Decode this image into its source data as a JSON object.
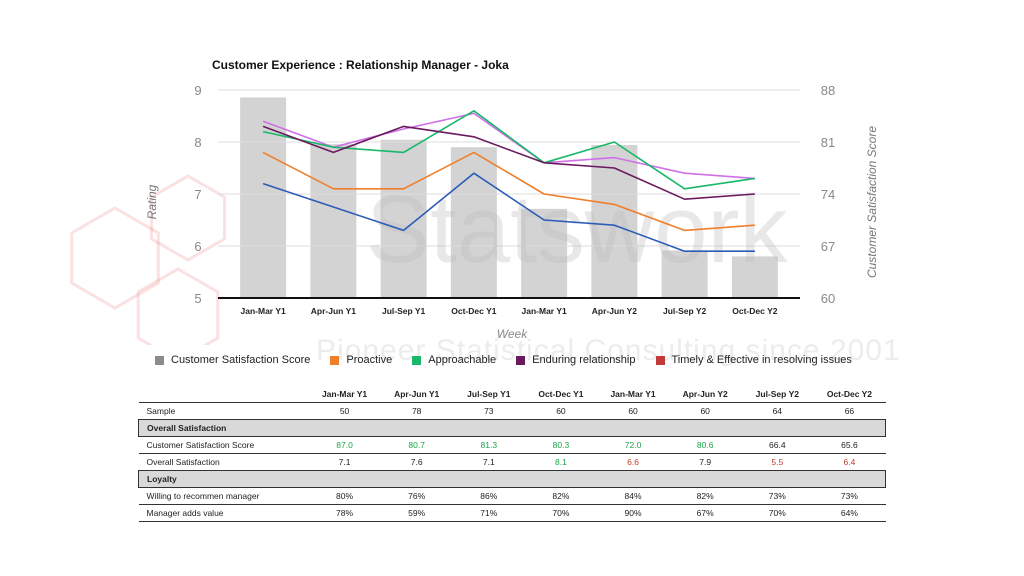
{
  "colors": {
    "bar": "#d3d3d3",
    "legend_css": "#8c8c8c",
    "proactive": "#f07f2a",
    "approachable": "#19b86a",
    "enduring": "#6b1a5f",
    "timely": "#c23a3a",
    "lavender": "#d070e8",
    "blue": "#2b5cb8",
    "green_text": "#1aa64a",
    "red_text": "#c0392b"
  },
  "watermark": {
    "brand": "Statswork",
    "tagline": "Pioneer Statistical Consulting since 2001"
  },
  "chart_data": {
    "type": "bar-line combo",
    "title": "Customer Experience : Relationship Manager - Joka",
    "xlabel": "Week",
    "ylabel_left": "Rating",
    "ylabel_right": "Customer Satisfaction Score",
    "ylim_left": [
      5,
      9
    ],
    "ylim_right": [
      60,
      88
    ],
    "yticks_left": [
      5,
      6,
      7,
      8,
      9
    ],
    "yticks_right": [
      60,
      67,
      74,
      81,
      88
    ],
    "categories": [
      "Jan-Mar Y1",
      "Apr-Jun Y1",
      "Jul-Sep Y1",
      "Oct-Dec Y1",
      "Jan-Mar Y1",
      "Apr-Jun Y2",
      "Jul-Sep Y2",
      "Oct-Dec Y2"
    ],
    "bars": {
      "name": "Customer Satisfaction Score",
      "values": [
        87.0,
        80.7,
        81.3,
        80.3,
        72.0,
        80.6,
        66.4,
        65.6
      ]
    },
    "series": [
      {
        "name": "Enduring relationship",
        "color_key": "lavender",
        "values": [
          8.4,
          7.9,
          8.25,
          8.55,
          7.6,
          7.7,
          7.4,
          7.3
        ]
      },
      {
        "name": "Approachable",
        "color_key": "approachable",
        "values": [
          8.2,
          7.9,
          7.8,
          8.6,
          7.6,
          8.0,
          7.1,
          7.3
        ]
      },
      {
        "name": "Enduring relationship",
        "color_key": "enduring",
        "values": [
          8.3,
          7.8,
          8.3,
          8.1,
          7.6,
          7.5,
          6.9,
          7.0
        ]
      },
      {
        "name": "Proactive",
        "color_key": "proactive",
        "values": [
          7.8,
          7.1,
          7.1,
          7.8,
          7.0,
          6.8,
          6.3,
          6.4
        ]
      },
      {
        "name": "Timely & Effective in resolving issues",
        "color_key": "blue",
        "values": [
          7.2,
          6.75,
          6.3,
          7.4,
          6.5,
          6.4,
          5.9,
          5.9
        ]
      }
    ]
  },
  "legend": [
    {
      "label": "Customer Satisfaction Score",
      "color_key": "legend_css"
    },
    {
      "label": "Proactive",
      "color_key": "proactive"
    },
    {
      "label": "Approachable",
      "color_key": "approachable"
    },
    {
      "label": "Enduring relationship",
      "color_key": "enduring"
    },
    {
      "label": "Timely & Effective in resolving issues",
      "color_key": "timely"
    }
  ],
  "table": {
    "headers": [
      "Jan-Mar Y1",
      "Apr-Jun Y1",
      "Jul-Sep Y1",
      "Oct-Dec Y1",
      "Jan-Mar Y1",
      "Apr-Jun Y2",
      "Jul-Sep Y2",
      "Oct-Dec Y2"
    ],
    "rows": [
      {
        "type": "data",
        "label": "Sample",
        "values": [
          "50",
          "78",
          "73",
          "60",
          "60",
          "60",
          "64",
          "66"
        ],
        "styles": [
          "",
          "",
          "",
          "",
          "",
          "",
          "",
          ""
        ]
      },
      {
        "type": "section",
        "label": "Overall Satisfaction"
      },
      {
        "type": "data",
        "label": "Customer Satisfaction Score",
        "values": [
          "87.0",
          "80.7",
          "81.3",
          "80.3",
          "72.0",
          "80.6",
          "66.4",
          "65.6"
        ],
        "styles": [
          "green",
          "green",
          "green",
          "green",
          "green",
          "green",
          "",
          ""
        ]
      },
      {
        "type": "data",
        "label": "Overall Satisfaction",
        "values": [
          "7.1",
          "7.6",
          "7.1",
          "8.1",
          "6.6",
          "7.9",
          "5.5",
          "6.4"
        ],
        "styles": [
          "",
          "",
          "",
          "green",
          "red",
          "",
          "red",
          "red"
        ]
      },
      {
        "type": "section",
        "label": "Loyalty"
      },
      {
        "type": "data",
        "label": "Willing to recommen manager",
        "values": [
          "80%",
          "76%",
          "86%",
          "82%",
          "84%",
          "82%",
          "73%",
          "73%"
        ],
        "styles": [
          "",
          "",
          "",
          "",
          "",
          "",
          "",
          ""
        ]
      },
      {
        "type": "data",
        "label": "Manager adds value",
        "values": [
          "78%",
          "59%",
          "71%",
          "70%",
          "90%",
          "67%",
          "70%",
          "64%"
        ],
        "styles": [
          "",
          "",
          "",
          "",
          "",
          "",
          "",
          ""
        ]
      }
    ]
  }
}
